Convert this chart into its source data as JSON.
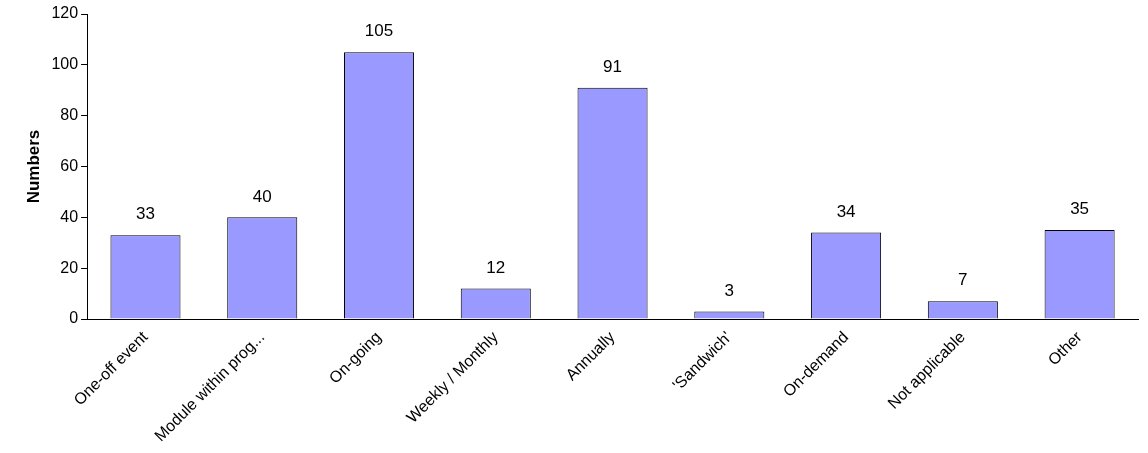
{
  "chart_data": {
    "type": "bar",
    "ylabel": "Numbers",
    "categories": [
      "One-off event",
      "Module within prog...",
      "On-going",
      "Weekly / Monthly",
      "Annually",
      "'Sandwich'",
      "On-demand",
      "Not applicable",
      "Other"
    ],
    "values": [
      33,
      40,
      105,
      12,
      91,
      3,
      34,
      7,
      35
    ],
    "color": "#9999ff",
    "ylim": [
      0,
      120
    ],
    "yticks": [
      0,
      20,
      40,
      60,
      80,
      100,
      120
    ],
    "grid": false,
    "legend": false,
    "data_labels": true
  }
}
